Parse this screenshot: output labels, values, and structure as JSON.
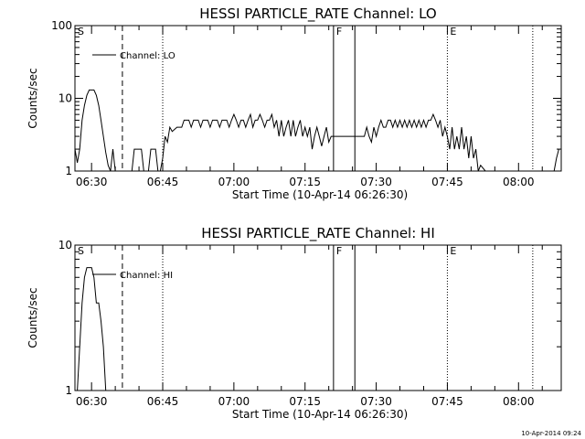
{
  "footer": {
    "timestamp": "10-Apr-2014 09:24"
  },
  "chart_data": [
    {
      "type": "line",
      "title": "HESSI PARTICLE_RATE Channel: LO",
      "xlabel": "Start Time (10-Apr-14 06:26:30)",
      "ylabel": "Counts/sec",
      "y_scale": "log",
      "ylim": [
        1,
        100
      ],
      "y_ticks": [
        1,
        10,
        100
      ],
      "y_tick_labels": [
        "1",
        "10",
        "100"
      ],
      "xlim": [
        "06:26:30",
        "08:09:00"
      ],
      "x_ticks": [
        "06:30",
        "06:45",
        "07:00",
        "07:15",
        "07:30",
        "07:45",
        "08:00"
      ],
      "x_tick_labels": [
        "06:30",
        "06:45",
        "07:00",
        "07:15",
        "07:30",
        "07:45",
        "08:00"
      ],
      "legend": {
        "position": "top-left",
        "entries": [
          "Channel: LO"
        ]
      },
      "series": [
        {
          "name": "Channel: LO",
          "points": [
            [
              "06:26:30",
              2
            ],
            [
              "06:27:00",
              1.3
            ],
            [
              "06:27:30",
              2
            ],
            [
              "06:28:00",
              5
            ],
            [
              "06:28:30",
              8
            ],
            [
              "06:29:00",
              11
            ],
            [
              "06:29:30",
              13
            ],
            [
              "06:30:00",
              13
            ],
            [
              "06:30:30",
              13
            ],
            [
              "06:31:00",
              11
            ],
            [
              "06:31:30",
              8
            ],
            [
              "06:32:00",
              5
            ],
            [
              "06:32:30",
              3
            ],
            [
              "06:33:00",
              1.8
            ],
            [
              "06:33:30",
              1.2
            ],
            [
              "06:34:00",
              1
            ],
            [
              "06:34:30",
              2
            ],
            [
              "06:35:00",
              1
            ],
            [
              "06:35:30",
              1
            ],
            [
              "06:36:00",
              1
            ],
            [
              "06:37:30",
              1
            ],
            [
              "06:38:30",
              1
            ],
            [
              "06:39:00",
              2
            ],
            [
              "06:39:30",
              2
            ],
            [
              "06:40:30",
              2
            ],
            [
              "06:41:00",
              1
            ],
            [
              "06:42:00",
              1
            ],
            [
              "06:42:30",
              2
            ],
            [
              "06:43:30",
              2
            ],
            [
              "06:44:00",
              1
            ],
            [
              "06:44:30",
              1
            ],
            [
              "06:45:00",
              1.5
            ],
            [
              "06:45:30",
              3
            ],
            [
              "06:46:00",
              2.5
            ],
            [
              "06:46:30",
              4
            ],
            [
              "06:47:00",
              3.5
            ],
            [
              "06:48:00",
              4
            ],
            [
              "06:49:00",
              4
            ],
            [
              "06:49:30",
              5
            ],
            [
              "06:50:30",
              5
            ],
            [
              "06:51:00",
              4
            ],
            [
              "06:51:30",
              5
            ],
            [
              "06:52:30",
              5
            ],
            [
              "06:53:00",
              4
            ],
            [
              "06:53:30",
              5
            ],
            [
              "06:54:30",
              5
            ],
            [
              "06:55:00",
              4
            ],
            [
              "06:55:30",
              5
            ],
            [
              "06:56:30",
              5
            ],
            [
              "06:57:00",
              4
            ],
            [
              "06:57:30",
              5
            ],
            [
              "06:58:30",
              5
            ],
            [
              "06:59:00",
              4
            ],
            [
              "06:59:30",
              5
            ],
            [
              "07:00:00",
              6
            ],
            [
              "07:00:30",
              5
            ],
            [
              "07:01:00",
              4
            ],
            [
              "07:01:30",
              5
            ],
            [
              "07:02:00",
              5
            ],
            [
              "07:02:30",
              4
            ],
            [
              "07:03:00",
              5
            ],
            [
              "07:03:30",
              6
            ],
            [
              "07:04:00",
              4
            ],
            [
              "07:04:30",
              5
            ],
            [
              "07:05:00",
              5
            ],
            [
              "07:05:30",
              6
            ],
            [
              "07:06:00",
              5
            ],
            [
              "07:06:30",
              4
            ],
            [
              "07:07:00",
              5
            ],
            [
              "07:07:30",
              5
            ],
            [
              "07:08:00",
              6
            ],
            [
              "07:08:30",
              4
            ],
            [
              "07:09:00",
              5
            ],
            [
              "07:09:30",
              3
            ],
            [
              "07:10:00",
              5
            ],
            [
              "07:10:30",
              3
            ],
            [
              "07:11:00",
              4
            ],
            [
              "07:11:30",
              5
            ],
            [
              "07:12:00",
              3
            ],
            [
              "07:12:30",
              5
            ],
            [
              "07:13:00",
              3
            ],
            [
              "07:13:30",
              4
            ],
            [
              "07:14:00",
              5
            ],
            [
              "07:14:30",
              3
            ],
            [
              "07:15:00",
              4
            ],
            [
              "07:15:30",
              3
            ],
            [
              "07:16:00",
              4
            ],
            [
              "07:16:30",
              2
            ],
            [
              "07:17:00",
              3
            ],
            [
              "07:17:30",
              4
            ],
            [
              "07:18:00",
              3
            ],
            [
              "07:18:30",
              2.2
            ],
            [
              "07:19:00",
              3
            ],
            [
              "07:19:30",
              4
            ],
            [
              "07:20:00",
              2.5
            ],
            [
              "07:20:30",
              3
            ],
            [
              "07:27:30",
              3
            ],
            [
              "07:28:00",
              4
            ],
            [
              "07:28:30",
              3
            ],
            [
              "07:29:00",
              2.5
            ],
            [
              "07:29:30",
              4
            ],
            [
              "07:30:00",
              3
            ],
            [
              "07:30:30",
              4
            ],
            [
              "07:31:00",
              5
            ],
            [
              "07:31:30",
              4
            ],
            [
              "07:32:00",
              4
            ],
            [
              "07:32:30",
              5
            ],
            [
              "07:33:00",
              5
            ],
            [
              "07:33:30",
              4
            ],
            [
              "07:34:00",
              5
            ],
            [
              "07:34:30",
              4
            ],
            [
              "07:35:00",
              5
            ],
            [
              "07:35:30",
              4
            ],
            [
              "07:36:00",
              5
            ],
            [
              "07:36:30",
              4
            ],
            [
              "07:37:00",
              5
            ],
            [
              "07:37:30",
              4
            ],
            [
              "07:38:00",
              5
            ],
            [
              "07:38:30",
              4
            ],
            [
              "07:39:00",
              5
            ],
            [
              "07:39:30",
              4
            ],
            [
              "07:40:00",
              5
            ],
            [
              "07:40:30",
              4
            ],
            [
              "07:41:00",
              5
            ],
            [
              "07:41:30",
              5
            ],
            [
              "07:42:00",
              6
            ],
            [
              "07:42:30",
              5
            ],
            [
              "07:43:00",
              4
            ],
            [
              "07:43:30",
              5
            ],
            [
              "07:44:00",
              3
            ],
            [
              "07:44:30",
              4
            ],
            [
              "07:45:00",
              3
            ],
            [
              "07:45:30",
              2
            ],
            [
              "07:46:00",
              4
            ],
            [
              "07:46:30",
              2
            ],
            [
              "07:47:00",
              3
            ],
            [
              "07:47:30",
              2
            ],
            [
              "07:48:00",
              4
            ],
            [
              "07:48:30",
              2
            ],
            [
              "07:49:00",
              3
            ],
            [
              "07:49:30",
              1.5
            ],
            [
              "07:50:00",
              3
            ],
            [
              "07:50:30",
              1.5
            ],
            [
              "07:51:00",
              2
            ],
            [
              "07:51:30",
              1
            ],
            [
              "07:52:00",
              1.2
            ],
            [
              "07:53:00",
              1
            ],
            [
              "07:53:30",
              1
            ]
          ]
        },
        {
          "name": "",
          "points": [
            [
              "08:07:30",
              1
            ],
            [
              "08:08:00",
              1.5
            ],
            [
              "08:08:30",
              2
            ]
          ]
        }
      ],
      "markers": [
        {
          "label": "S",
          "time": "06:26:30",
          "style": "none"
        },
        {
          "label": "",
          "time": "06:36:30",
          "style": "dashed"
        },
        {
          "label": "",
          "time": "06:45:00",
          "style": "dotted"
        },
        {
          "label": "F",
          "time": "07:21:00",
          "style": "solid"
        },
        {
          "label": "",
          "time": "07:25:30",
          "style": "solid"
        },
        {
          "label": "E",
          "time": "07:45:00",
          "style": "dotted"
        },
        {
          "label": "",
          "time": "08:03:00",
          "style": "dotted"
        }
      ]
    },
    {
      "type": "line",
      "title": "HESSI PARTICLE_RATE Channel: HI",
      "xlabel": "Start Time (10-Apr-14 06:26:30)",
      "ylabel": "Counts/sec",
      "y_scale": "log",
      "ylim": [
        1,
        10
      ],
      "y_ticks": [
        1,
        10
      ],
      "y_tick_labels": [
        "1",
        "10"
      ],
      "xlim": [
        "06:26:30",
        "08:09:00"
      ],
      "x_ticks": [
        "06:30",
        "06:45",
        "07:00",
        "07:15",
        "07:30",
        "07:45",
        "08:00"
      ],
      "x_tick_labels": [
        "06:30",
        "06:45",
        "07:00",
        "07:15",
        "07:30",
        "07:45",
        "08:00"
      ],
      "legend": {
        "position": "top-left",
        "entries": [
          "Channel: HI"
        ]
      },
      "series": [
        {
          "name": "Channel: HI",
          "points": [
            [
              "06:27:00",
              1
            ],
            [
              "06:27:30",
              2
            ],
            [
              "06:28:00",
              4
            ],
            [
              "06:28:30",
              6
            ],
            [
              "06:29:00",
              7
            ],
            [
              "06:30:00",
              7
            ],
            [
              "06:30:30",
              6
            ],
            [
              "06:31:00",
              4
            ],
            [
              "06:31:30",
              4
            ],
            [
              "06:32:00",
              3
            ],
            [
              "06:32:30",
              2
            ],
            [
              "06:33:00",
              1
            ]
          ]
        }
      ],
      "markers": [
        {
          "label": "S",
          "time": "06:26:30",
          "style": "none"
        },
        {
          "label": "",
          "time": "06:36:30",
          "style": "dashed"
        },
        {
          "label": "",
          "time": "06:45:00",
          "style": "dotted"
        },
        {
          "label": "F",
          "time": "07:21:00",
          "style": "solid"
        },
        {
          "label": "",
          "time": "07:25:30",
          "style": "solid"
        },
        {
          "label": "E",
          "time": "07:45:00",
          "style": "dotted"
        },
        {
          "label": "",
          "time": "08:03:00",
          "style": "dotted"
        }
      ]
    }
  ]
}
